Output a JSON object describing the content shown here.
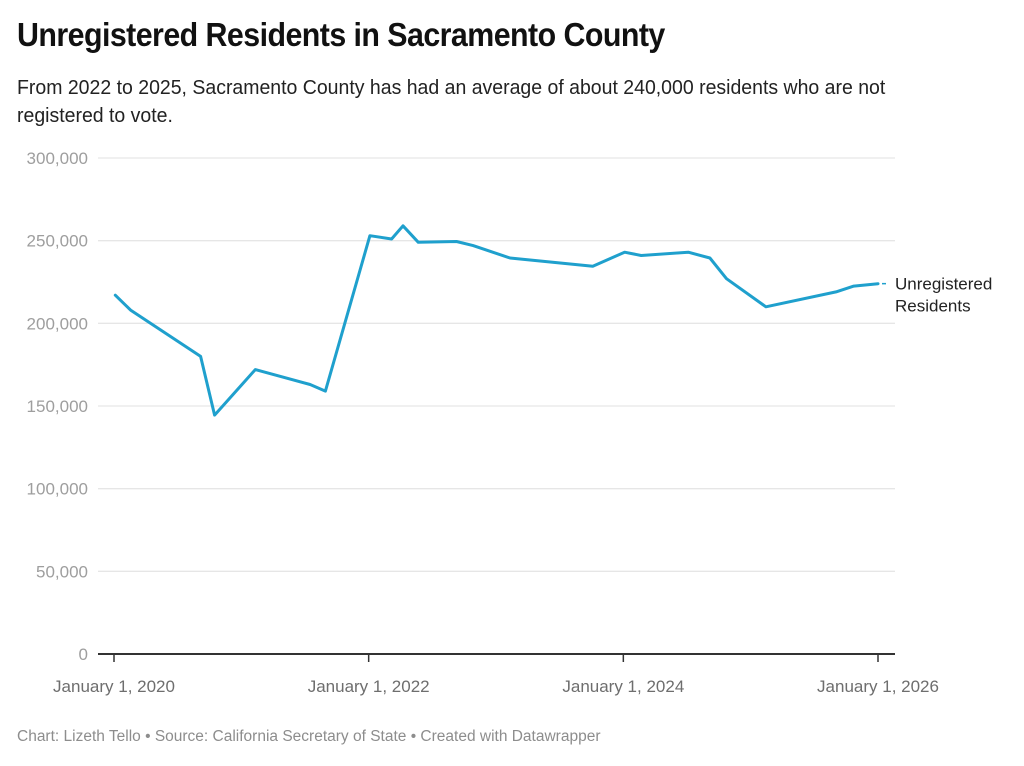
{
  "header": {
    "title": "Unregistered Residents in Sacramento County",
    "subtitle": "From 2022 to 2025, Sacramento County has had an average of about 240,000 residents who are not registered to vote."
  },
  "footer": {
    "credit": "Chart: Lizeth Tello • Source: California Secretary of State • Created with Datawrapper"
  },
  "colors": {
    "series": "#1fa0cd",
    "grid": "#e6e6e6",
    "axis": "#333333"
  },
  "chart_data": {
    "type": "line",
    "title": "Unregistered Residents in Sacramento County",
    "xlabel": "",
    "ylabel": "",
    "ylim": [
      0,
      300000
    ],
    "xlim": [
      2020.0,
      2026.0
    ],
    "grid": true,
    "legend": "inline-right",
    "y_ticks": [
      {
        "value": 0,
        "label": "0"
      },
      {
        "value": 50000,
        "label": "50,000"
      },
      {
        "value": 100000,
        "label": "100,000"
      },
      {
        "value": 150000,
        "label": "150,000"
      },
      {
        "value": 200000,
        "label": "200,000"
      },
      {
        "value": 250000,
        "label": "250,000"
      },
      {
        "value": 300000,
        "label": "300,000"
      }
    ],
    "x_ticks": [
      {
        "value": 2020.0,
        "label": "January 1, 2020"
      },
      {
        "value": 2022.0,
        "label": "January 1, 2022"
      },
      {
        "value": 2024.0,
        "label": "January 1, 2024"
      },
      {
        "value": 2026.0,
        "label": "January 1, 2026"
      }
    ],
    "series": [
      {
        "name": "Unregistered Residents",
        "label_lines": [
          "Unregistered",
          "Residents"
        ],
        "x": [
          2020.01,
          2020.13,
          2020.68,
          2020.79,
          2021.11,
          2021.54,
          2021.66,
          2022.01,
          2022.18,
          2022.27,
          2022.39,
          2022.69,
          2022.82,
          2023.11,
          2023.76,
          2024.01,
          2024.14,
          2024.51,
          2024.68,
          2024.81,
          2025.12,
          2025.67,
          2025.81,
          2026.0
        ],
        "values": [
          217000,
          208000,
          180000,
          144500,
          172000,
          163000,
          159000,
          253000,
          251000,
          259000,
          249000,
          249500,
          247000,
          239500,
          234500,
          243000,
          241000,
          243000,
          239500,
          227000,
          210000,
          219000,
          222500,
          224000
        ]
      }
    ]
  }
}
